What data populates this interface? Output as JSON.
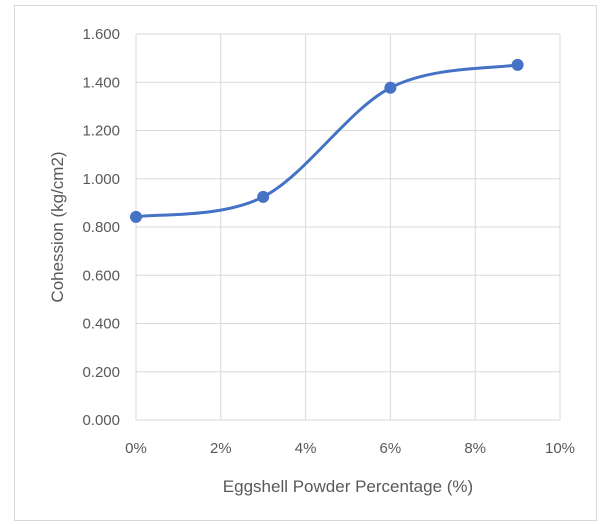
{
  "chart_data": {
    "type": "line",
    "title": "",
    "xlabel": "Eggshell Powder Percentage (%)",
    "ylabel": "Cohession (kg/cm2)",
    "x": [
      0,
      3,
      6,
      9
    ],
    "series": [
      {
        "values": [
          0.842,
          0.925,
          1.377,
          1.472
        ]
      }
    ],
    "xlim": [
      0,
      10
    ],
    "ylim": [
      0,
      1.6
    ],
    "x_ticks": [
      0,
      2,
      4,
      6,
      8,
      10
    ],
    "x_tick_labels": [
      "0%",
      "2%",
      "4%",
      "6%",
      "8%",
      "10%"
    ],
    "y_ticks": [
      0,
      0.2,
      0.4,
      0.6,
      0.8,
      1.0,
      1.2,
      1.4,
      1.6
    ],
    "y_tick_labels": [
      "0.000",
      "0.200",
      "0.400",
      "0.600",
      "0.800",
      "1.000",
      "1.200",
      "1.400",
      "1.600"
    ],
    "grid": true,
    "smooth": true,
    "legend": "none",
    "line_color": "#4472c4",
    "grid_color": "#d9d9d9"
  }
}
